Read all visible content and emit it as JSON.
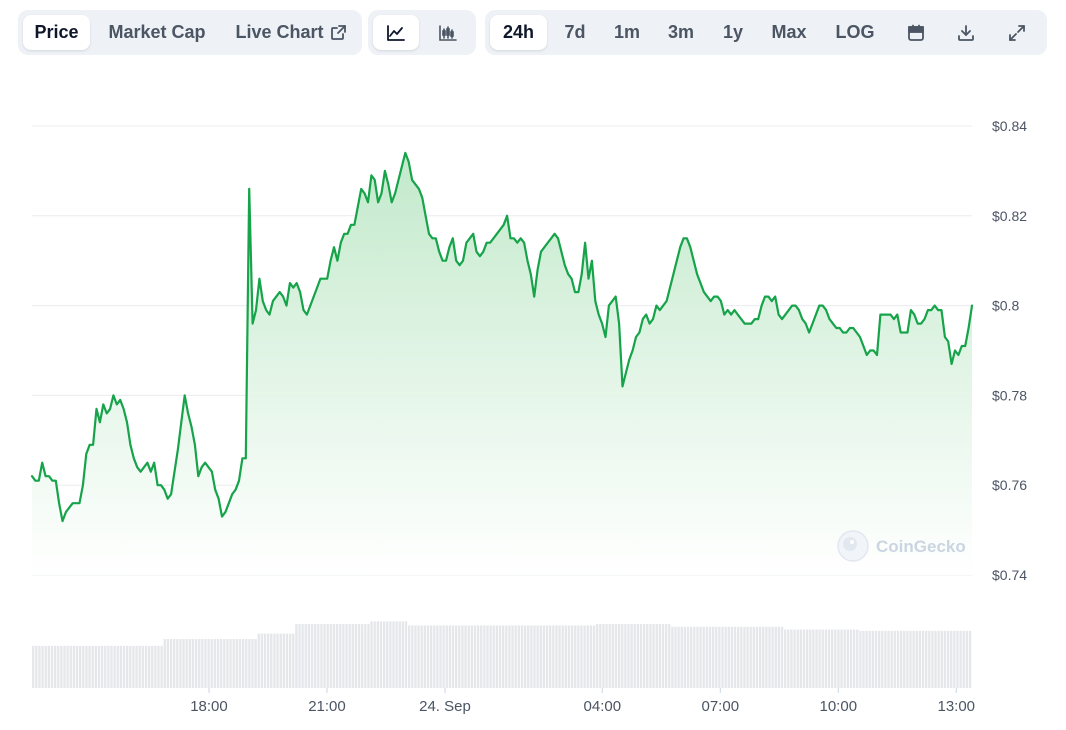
{
  "toolbar": {
    "tabs": [
      {
        "label": "Price",
        "active": true
      },
      {
        "label": "Market Cap",
        "active": false
      },
      {
        "label": "Live Chart",
        "active": false
      }
    ],
    "chart_types": [
      {
        "icon": "line-chart-icon",
        "active": true
      },
      {
        "icon": "candlestick-chart-icon",
        "active": false
      }
    ],
    "ranges": [
      {
        "label": "24h",
        "active": true
      },
      {
        "label": "7d",
        "active": false
      },
      {
        "label": "1m",
        "active": false
      },
      {
        "label": "3m",
        "active": false
      },
      {
        "label": "1y",
        "active": false
      },
      {
        "label": "Max",
        "active": false
      }
    ],
    "log_label": "LOG",
    "actions": [
      "calendar-icon",
      "download-icon",
      "fullscreen-icon"
    ]
  },
  "watermark": "CoinGecko",
  "colors": {
    "line": "#16a34a",
    "fill_top": "#bfe8c8",
    "volume": "#e5e7eb",
    "grid": "#eaecef",
    "active_bg": "#ffffff",
    "group_bg": "#eef1f5"
  },
  "chart_data": {
    "type": "line",
    "y_ticks": [
      "$0.84",
      "$0.82",
      "$0.8",
      "$0.78",
      "$0.76",
      "$0.74"
    ],
    "y_tick_values": [
      0.84,
      0.82,
      0.8,
      0.78,
      0.76,
      0.74
    ],
    "ylim": [
      0.74,
      0.84
    ],
    "x_ticks": [
      {
        "label": "18:00",
        "hour": 18
      },
      {
        "label": "21:00",
        "hour": 21
      },
      {
        "label": "24. Sep",
        "hour": 24
      },
      {
        "label": "04:00",
        "hour": 28
      },
      {
        "label": "07:00",
        "hour": 31
      },
      {
        "label": "10:00",
        "hour": 34
      },
      {
        "label": "13:00",
        "hour": 37
      }
    ],
    "x_range_hours": [
      13.5,
      37.4
    ],
    "series": [
      {
        "values": [
          0.762,
          0.761,
          0.761,
          0.765,
          0.762,
          0.762,
          0.761,
          0.761,
          0.756,
          0.752,
          0.754,
          0.755,
          0.756,
          0.756,
          0.756,
          0.76,
          0.767,
          0.769,
          0.769,
          0.777,
          0.774,
          0.778,
          0.776,
          0.777,
          0.78,
          0.778,
          0.779,
          0.777,
          0.774,
          0.769,
          0.766,
          0.764,
          0.763,
          0.764,
          0.765,
          0.763,
          0.765,
          0.76,
          0.76,
          0.759,
          0.757,
          0.758,
          0.763,
          0.768,
          0.774,
          0.78,
          0.776,
          0.773,
          0.769,
          0.762,
          0.764,
          0.765,
          0.764,
          0.763,
          0.759,
          0.757,
          0.753,
          0.754,
          0.756,
          0.758,
          0.759,
          0.761,
          0.766,
          0.766,
          0.826,
          0.796,
          0.799,
          0.806,
          0.801,
          0.799,
          0.798,
          0.801,
          0.802,
          0.803,
          0.802,
          0.8,
          0.805,
          0.804,
          0.805,
          0.803,
          0.799,
          0.798,
          0.8,
          0.802,
          0.804,
          0.806,
          0.806,
          0.806,
          0.81,
          0.813,
          0.81,
          0.814,
          0.816,
          0.816,
          0.818,
          0.818,
          0.822,
          0.826,
          0.825,
          0.823,
          0.829,
          0.828,
          0.823,
          0.825,
          0.83,
          0.827,
          0.823,
          0.825,
          0.828,
          0.831,
          0.834,
          0.832,
          0.828,
          0.827,
          0.826,
          0.824,
          0.82,
          0.816,
          0.815,
          0.815,
          0.812,
          0.81,
          0.81,
          0.813,
          0.815,
          0.81,
          0.809,
          0.81,
          0.814,
          0.815,
          0.816,
          0.812,
          0.811,
          0.812,
          0.814,
          0.814,
          0.815,
          0.816,
          0.817,
          0.818,
          0.82,
          0.815,
          0.815,
          0.814,
          0.815,
          0.814,
          0.81,
          0.807,
          0.802,
          0.808,
          0.812,
          0.813,
          0.814,
          0.815,
          0.816,
          0.815,
          0.812,
          0.809,
          0.807,
          0.806,
          0.803,
          0.803,
          0.807,
          0.814,
          0.806,
          0.81,
          0.801,
          0.798,
          0.796,
          0.793,
          0.8,
          0.801,
          0.802,
          0.796,
          0.782,
          0.785,
          0.788,
          0.79,
          0.793,
          0.794,
          0.797,
          0.798,
          0.796,
          0.797,
          0.8,
          0.799,
          0.8,
          0.801,
          0.804,
          0.807,
          0.81,
          0.813,
          0.815,
          0.815,
          0.813,
          0.81,
          0.807,
          0.805,
          0.803,
          0.802,
          0.801,
          0.802,
          0.802,
          0.801,
          0.798,
          0.799,
          0.798,
          0.799,
          0.798,
          0.797,
          0.796,
          0.796,
          0.796,
          0.797,
          0.797,
          0.8,
          0.802,
          0.802,
          0.801,
          0.802,
          0.798,
          0.797,
          0.798,
          0.799,
          0.8,
          0.8,
          0.799,
          0.797,
          0.796,
          0.794,
          0.796,
          0.798,
          0.8,
          0.8,
          0.799,
          0.797,
          0.796,
          0.795,
          0.795,
          0.794,
          0.794,
          0.795,
          0.795,
          0.794,
          0.793,
          0.791,
          0.789,
          0.79,
          0.79,
          0.789,
          0.798,
          0.798,
          0.798,
          0.798,
          0.797,
          0.798,
          0.794,
          0.794,
          0.794,
          0.799,
          0.798,
          0.796,
          0.796,
          0.797,
          0.799,
          0.799,
          0.8,
          0.799,
          0.799,
          0.793,
          0.792,
          0.787,
          0.79,
          0.789,
          0.791,
          0.791,
          0.795,
          0.8
        ]
      }
    ],
    "volume_levels": [
      {
        "from": 0.0,
        "to": 0.14,
        "level": 0.62
      },
      {
        "from": 0.14,
        "to": 0.24,
        "level": 0.72
      },
      {
        "from": 0.24,
        "to": 0.28,
        "level": 0.8
      },
      {
        "from": 0.28,
        "to": 0.36,
        "level": 0.94
      },
      {
        "from": 0.36,
        "to": 0.4,
        "level": 0.98
      },
      {
        "from": 0.4,
        "to": 0.6,
        "level": 0.92
      },
      {
        "from": 0.6,
        "to": 0.68,
        "level": 0.94
      },
      {
        "from": 0.68,
        "to": 0.8,
        "level": 0.9
      },
      {
        "from": 0.8,
        "to": 0.88,
        "level": 0.86
      },
      {
        "from": 0.88,
        "to": 1.0,
        "level": 0.84
      }
    ]
  }
}
